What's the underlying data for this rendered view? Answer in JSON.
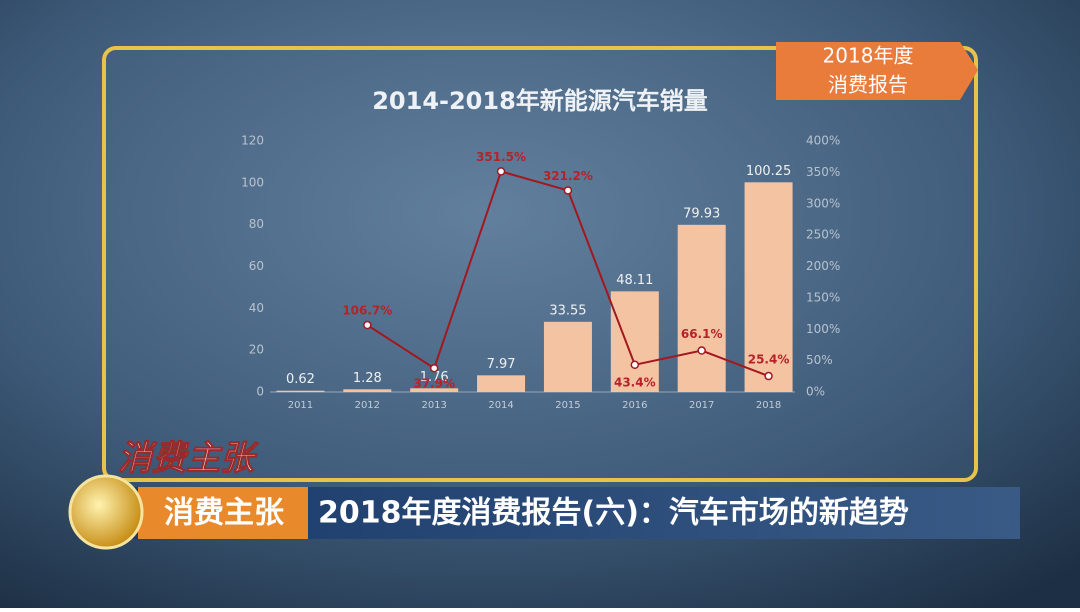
{
  "chart_data": {
    "type": "bar",
    "title": "2014-2018年新能源汽车销量",
    "categories": [
      "2011",
      "2012",
      "2013",
      "2014",
      "2015",
      "2016",
      "2017",
      "2018"
    ],
    "series": [
      {
        "type": "bar",
        "color": "#f4c4a2",
        "values": [
          0.62,
          1.28,
          1.76,
          7.97,
          33.55,
          48.11,
          79.93,
          100.25
        ]
      },
      {
        "type": "line",
        "axis": "y2",
        "color": "#a3171f",
        "values": [
          null,
          106.7,
          37.9,
          351.5,
          321.2,
          43.4,
          66.1,
          25.4
        ],
        "value_labels": [
          null,
          "106.7%",
          "37.9%",
          "351.5%",
          "321.2%",
          "43.4%",
          "66.1%",
          "25.4%"
        ]
      }
    ],
    "ylim": [
      0,
      120
    ],
    "yticks": [
      0,
      20,
      40,
      60,
      80,
      100,
      120
    ],
    "y2lim": [
      0,
      400
    ],
    "y2ticks": [
      {
        "value": 0,
        "label": "0%"
      },
      {
        "value": 50,
        "label": "50%"
      },
      {
        "value": 100,
        "label": "100%"
      },
      {
        "value": 150,
        "label": "150%"
      },
      {
        "value": 200,
        "label": "200%"
      },
      {
        "value": 250,
        "label": "250%"
      },
      {
        "value": 300,
        "label": "300%"
      },
      {
        "value": 350,
        "label": "350%"
      },
      {
        "value": 400,
        "label": "400%"
      }
    ],
    "grid": false
  },
  "corner_badge": {
    "lines": [
      "2018年度",
      "消费报告"
    ]
  },
  "logo": "消费主张",
  "banner": {
    "tag": "消费主张",
    "headline": "2018年度消费报告(六)：汽车市场的新趋势"
  }
}
